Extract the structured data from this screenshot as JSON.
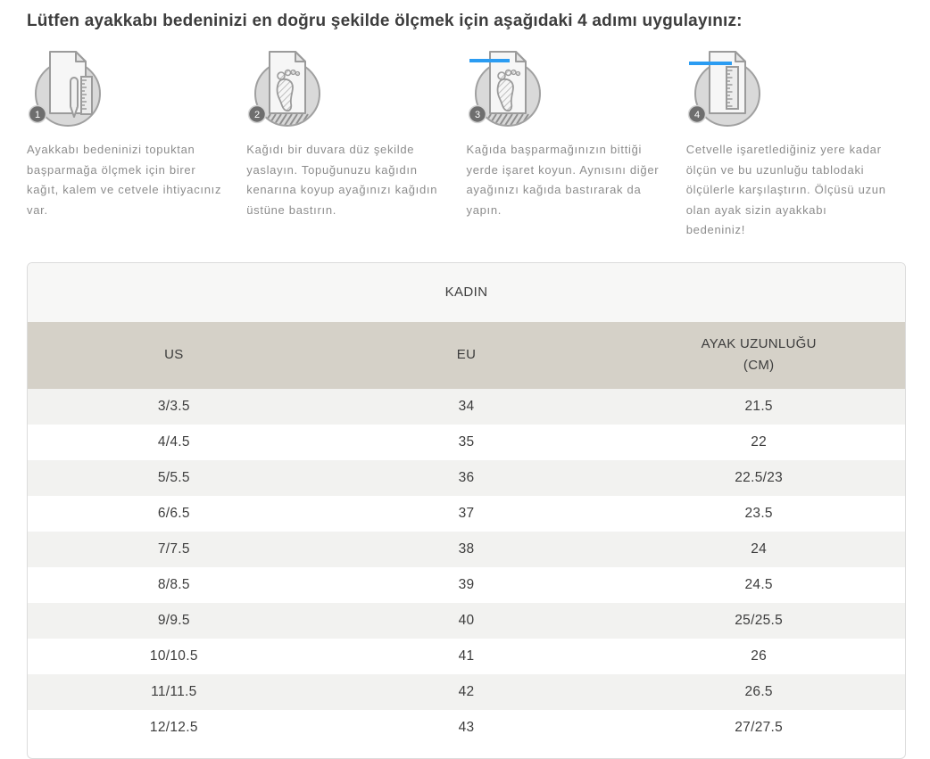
{
  "page": {
    "title": "Lütfen ayakkabı bedeninizi en doğru şekilde ölçmek için aşağıdaki 4 adımı uygulayınız:"
  },
  "steps": [
    {
      "number": "1",
      "icon": "paper-pencil-ruler-icon",
      "text": "Ayakkabı bedeninizi topuktan başparmağa ölçmek için birer kağıt, kalem ve cetvele ihtiyacınız var."
    },
    {
      "number": "2",
      "icon": "paper-footprint-icon",
      "text": "Kağıdı bir duvara düz şekilde yaslayın. Topuğunuzu kağıdın kenarına koyup ayağınızı kağıdın üstüne bastırın."
    },
    {
      "number": "3",
      "icon": "paper-footprint-mark-icon",
      "text": "Kağıda başparmağınızın bittiği yerde işaret koyun. Aynısını diğer ayağınızı kağıda bastırarak da yapın."
    },
    {
      "number": "4",
      "icon": "paper-ruler-measure-icon",
      "text": "Cetvelle işaretlediğiniz yere kadar ölçün ve bu uzunluğu tablodaki ölçülerle karşılaştırın. Ölçüsü uzun olan ayak sizin ayakkabı bedeniniz!"
    }
  ],
  "size_table": {
    "group_header": "KADIN",
    "columns": [
      "US",
      "EU",
      "AYAK UZUNLUĞU (CM)"
    ],
    "rows": [
      [
        "3/3.5",
        "34",
        "21.5"
      ],
      [
        "4/4.5",
        "35",
        "22"
      ],
      [
        "5/5.5",
        "36",
        "22.5/23"
      ],
      [
        "6/6.5",
        "37",
        "23.5"
      ],
      [
        "7/7.5",
        "38",
        "24"
      ],
      [
        "8/8.5",
        "39",
        "24.5"
      ],
      [
        "9/9.5",
        "40",
        "25/25.5"
      ],
      [
        "10/10.5",
        "41",
        "26"
      ],
      [
        "11/11.5",
        "42",
        "26.5"
      ],
      [
        "12/12.5",
        "43",
        "27/27.5"
      ]
    ]
  },
  "colors": {
    "accent_blue": "#2b9cf2",
    "header_bg": "#d5d1c8",
    "row_alt_bg": "#f2f2f0",
    "group_header_bg": "#f7f7f6",
    "text_dark": "#3d3d3d",
    "text_gray": "#8c8c8c",
    "border_gray": "#dcdcdc"
  }
}
